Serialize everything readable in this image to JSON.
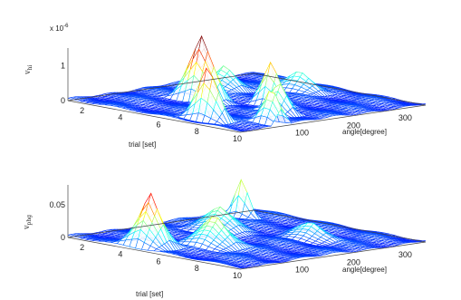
{
  "chart_data": [
    {
      "type": "surface",
      "title": "",
      "xlabel": "angle[degree]",
      "ylabel": "trial [set]",
      "zlabel": "v",
      "zlabel_sub": "hi",
      "exponent_label": "x 10",
      "exponent_power": "-6",
      "x_ticks": [
        "100",
        "200",
        "300"
      ],
      "y_ticks": [
        "2",
        "4",
        "6",
        "8",
        "10"
      ],
      "z_ticks": [
        "0",
        "1"
      ],
      "xlim": [
        0,
        360
      ],
      "ylim": [
        1,
        10
      ],
      "zlim": [
        0,
        1.5
      ],
      "colormap": "jet",
      "peaks": [
        {
          "angle": 30,
          "trial": 7.5,
          "value": 1.6,
          "width_deg": 18,
          "width_trial": 1.2
        },
        {
          "angle": 80,
          "trial": 9.5,
          "value": 1.1,
          "width_deg": 20,
          "width_trial": 0.9
        },
        {
          "angle": 140,
          "trial": 4.2,
          "value": 1.8,
          "width_deg": 25,
          "width_trial": 1.4
        },
        {
          "angle": 150,
          "trial": 8.0,
          "value": 0.9,
          "width_deg": 20,
          "width_trial": 1.0
        },
        {
          "angle": 230,
          "trial": 3.0,
          "value": 0.7,
          "width_deg": 30,
          "width_trial": 1.2
        },
        {
          "angle": 300,
          "trial": 5.0,
          "value": 0.6,
          "width_deg": 25,
          "width_trial": 1.5
        },
        {
          "angle": 190,
          "trial": 6.5,
          "value": 1.2,
          "width_deg": 18,
          "width_trial": 1.0
        }
      ]
    },
    {
      "type": "surface",
      "title": "",
      "xlabel": "angle[degree]",
      "ylabel": "trial [set]",
      "zlabel": "v",
      "zlabel_sub": "phg",
      "x_ticks": [
        "100",
        "200",
        "300"
      ],
      "y_ticks": [
        "2",
        "4",
        "6",
        "8",
        "10"
      ],
      "z_ticks": [
        "0",
        "0.05"
      ],
      "xlim": [
        0,
        360
      ],
      "ylim": [
        1,
        10
      ],
      "zlim": [
        0,
        0.08
      ],
      "colormap": "jet",
      "peaks": [
        {
          "angle": 30,
          "trial": 4.5,
          "value": 0.085,
          "width_deg": 30,
          "width_trial": 1.2
        },
        {
          "angle": 100,
          "trial": 6.0,
          "value": 0.05,
          "width_deg": 35,
          "width_trial": 1.5
        },
        {
          "angle": 200,
          "trial": 3.5,
          "value": 0.035,
          "width_deg": 40,
          "width_trial": 1.5
        },
        {
          "angle": 300,
          "trial": 2.0,
          "value": 0.06,
          "width_deg": 12,
          "width_trial": 0.8
        },
        {
          "angle": 250,
          "trial": 7.0,
          "value": 0.025,
          "width_deg": 30,
          "width_trial": 1.5
        }
      ]
    }
  ]
}
